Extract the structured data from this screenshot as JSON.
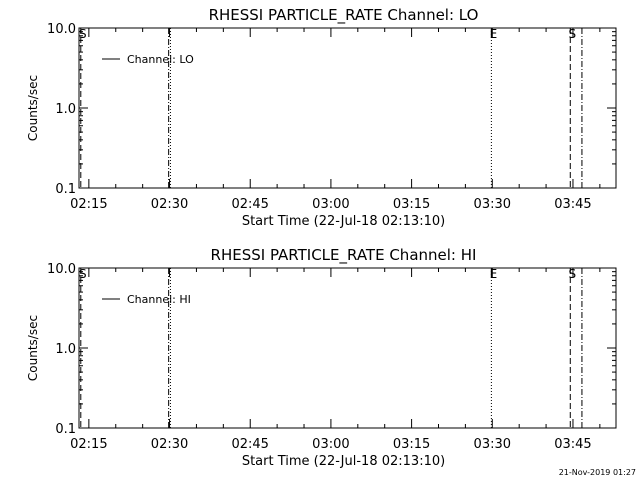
{
  "footer": {
    "timestamp": "21-Nov-2019 01:27"
  },
  "chart_data": [
    {
      "type": "line",
      "title": "RHESSI PARTICLE_RATE Channel: LO",
      "xlabel": "Start Time (22-Jul-18 02:13:10)",
      "ylabel": "Counts/sec",
      "y_scale": "log",
      "ylim": [
        0.1,
        10.0
      ],
      "xlim": [
        "02:13:10",
        "03:53:00"
      ],
      "x_ticks": [
        "02:15",
        "02:30",
        "02:45",
        "03:00",
        "03:15",
        "03:30",
        "03:45"
      ],
      "y_ticks": [
        "0.1",
        "1.0",
        "10.0"
      ],
      "grid": false,
      "legend": {
        "position": "top-left",
        "entries": [
          "Channel: LO"
        ]
      },
      "series": [
        {
          "name": "Channel: LO",
          "x": [],
          "y": []
        }
      ],
      "markers": [
        {
          "time": "02:13:30",
          "style": "dashed",
          "label": "S"
        },
        {
          "time": "02:29:50",
          "style": "dash-dot",
          "label": ""
        },
        {
          "time": "02:30:10",
          "style": "dotted",
          "label": ""
        },
        {
          "time": "03:29:50",
          "style": "dotted",
          "label": "E"
        },
        {
          "time": "03:44:30",
          "style": "dashed",
          "label": "S"
        },
        {
          "time": "03:46:40",
          "style": "dash-dot",
          "label": ""
        }
      ]
    },
    {
      "type": "line",
      "title": "RHESSI PARTICLE_RATE Channel: HI",
      "xlabel": "Start Time (22-Jul-18 02:13:10)",
      "ylabel": "Counts/sec",
      "y_scale": "log",
      "ylim": [
        0.1,
        10.0
      ],
      "xlim": [
        "02:13:10",
        "03:53:00"
      ],
      "x_ticks": [
        "02:15",
        "02:30",
        "02:45",
        "03:00",
        "03:15",
        "03:30",
        "03:45"
      ],
      "y_ticks": [
        "0.1",
        "1.0",
        "10.0"
      ],
      "grid": false,
      "legend": {
        "position": "top-left",
        "entries": [
          "Channel: HI"
        ]
      },
      "series": [
        {
          "name": "Channel: HI",
          "x": [],
          "y": []
        }
      ],
      "markers": [
        {
          "time": "02:13:30",
          "style": "dashed",
          "label": "S"
        },
        {
          "time": "02:29:50",
          "style": "dash-dot",
          "label": ""
        },
        {
          "time": "02:30:10",
          "style": "dotted",
          "label": ""
        },
        {
          "time": "03:29:50",
          "style": "dotted",
          "label": "E"
        },
        {
          "time": "03:44:30",
          "style": "dashed",
          "label": "S"
        },
        {
          "time": "03:46:40",
          "style": "dash-dot",
          "label": ""
        }
      ]
    }
  ]
}
